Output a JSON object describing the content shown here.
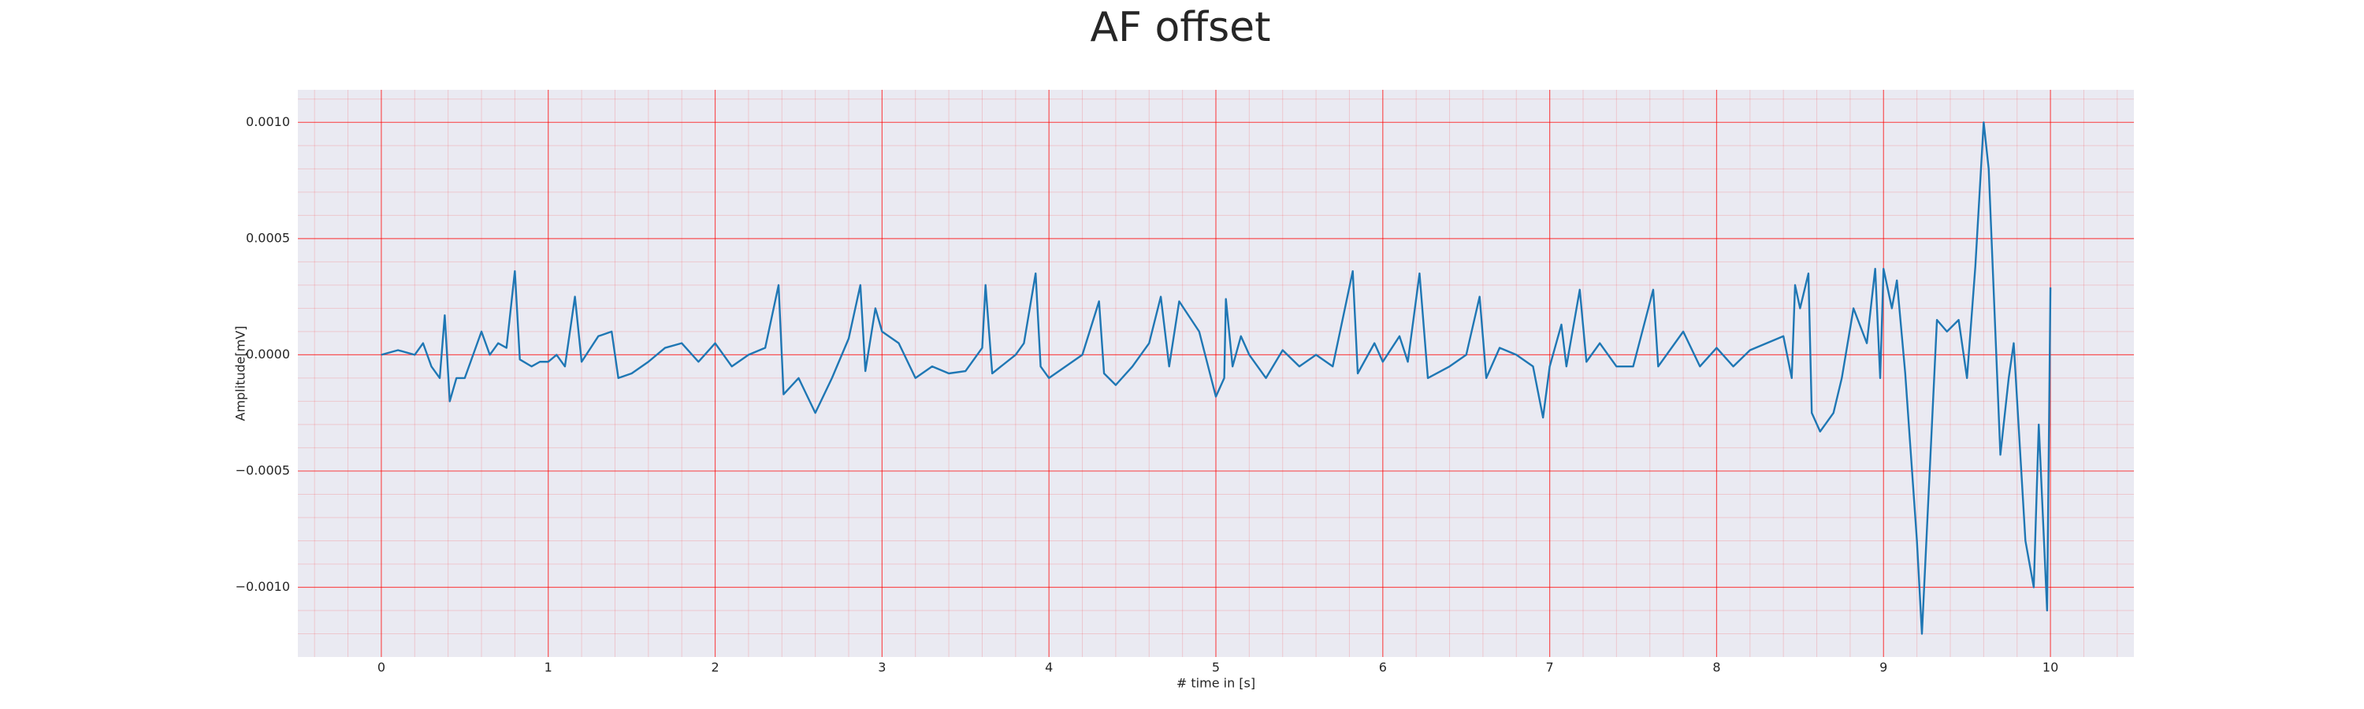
{
  "chart_data": {
    "type": "line",
    "title": "AF offset",
    "x_label": "# time in [s]",
    "y_label": "Amplitude[mV]",
    "xlim": [
      -0.5,
      10.5
    ],
    "ylim": [
      -0.0013,
      0.00114
    ],
    "xticks": [
      0,
      1,
      2,
      3,
      4,
      5,
      6,
      7,
      8,
      9,
      10
    ],
    "yticks": [
      {
        "value": -0.001,
        "label": "−0.0010"
      },
      {
        "value": -0.0005,
        "label": "−0.0005"
      },
      {
        "value": 0,
        "label": "0.0000"
      },
      {
        "value": 0.0005,
        "label": "0.0005"
      },
      {
        "value": 0.001,
        "label": "0.0010"
      }
    ],
    "grid": true,
    "minor_grid": true,
    "grid_color": "#ff0000",
    "background": "#eaeaf2",
    "x": [
      0,
      0.1,
      0.2,
      0.25,
      0.3,
      0.35,
      0.38,
      0.41,
      0.45,
      0.5,
      0.55,
      0.6,
      0.65,
      0.7,
      0.75,
      0.8,
      0.83,
      0.9,
      0.95,
      1.0,
      1.05,
      1.1,
      1.16,
      1.2,
      1.3,
      1.38,
      1.42,
      1.5,
      1.6,
      1.7,
      1.8,
      1.9,
      2.0,
      2.1,
      2.2,
      2.3,
      2.38,
      2.41,
      2.5,
      2.6,
      2.7,
      2.8,
      2.87,
      2.9,
      2.96,
      3.0,
      3.1,
      3.2,
      3.3,
      3.4,
      3.5,
      3.6,
      3.62,
      3.66,
      3.8,
      3.85,
      3.92,
      3.95,
      4.0,
      4.1,
      4.2,
      4.3,
      4.33,
      4.4,
      4.5,
      4.6,
      4.67,
      4.72,
      4.78,
      4.9,
      5.0,
      5.05,
      5.06,
      5.1,
      5.15,
      5.2,
      5.3,
      5.4,
      5.5,
      5.6,
      5.7,
      5.82,
      5.85,
      5.95,
      6.0,
      6.1,
      6.15,
      6.22,
      6.27,
      6.4,
      6.5,
      6.58,
      6.62,
      6.7,
      6.8,
      6.9,
      6.96,
      7.0,
      7.07,
      7.1,
      7.18,
      7.22,
      7.3,
      7.4,
      7.5,
      7.62,
      7.65,
      7.8,
      7.9,
      8.0,
      8.1,
      8.2,
      8.3,
      8.4,
      8.45,
      8.47,
      8.5,
      8.55,
      8.57,
      8.62,
      8.7,
      8.75,
      8.82,
      8.9,
      8.95,
      8.98,
      9.0,
      9.05,
      9.08,
      9.13,
      9.2,
      9.23,
      9.27,
      9.32,
      9.38,
      9.45,
      9.5,
      9.55,
      9.6,
      9.63,
      9.7,
      9.75,
      9.78,
      9.85,
      9.9,
      9.93,
      9.98,
      10.0
    ],
    "series": [
      {
        "name": "AF offset",
        "color": "#1f77b4",
        "values": [
          0,
          2e-05,
          0,
          5e-05,
          -5e-05,
          -0.0001,
          0.00017,
          -0.0002,
          -0.0001,
          -0.0001,
          0,
          0.0001,
          0,
          5e-05,
          3e-05,
          0.00036,
          -2e-05,
          -5e-05,
          -3e-05,
          -3e-05,
          0,
          -5e-05,
          0.00025,
          -3e-05,
          8e-05,
          0.0001,
          -0.0001,
          -8e-05,
          -3e-05,
          3e-05,
          5e-05,
          -3e-05,
          5e-05,
          -5e-05,
          0,
          3e-05,
          0.0003,
          -0.00017,
          -0.0001,
          -0.00025,
          -0.0001,
          7e-05,
          0.0003,
          -7e-05,
          0.0002,
          0.0001,
          5e-05,
          -0.0001,
          -5e-05,
          -8e-05,
          -7e-05,
          3e-05,
          0.0003,
          -8e-05,
          0,
          5e-05,
          0.00035,
          -5e-05,
          -0.0001,
          -5e-05,
          0,
          0.00023,
          -8e-05,
          -0.00013,
          -5e-05,
          5e-05,
          0.00025,
          -5e-05,
          0.00023,
          0.0001,
          -0.00018,
          -0.0001,
          0.00024,
          -5e-05,
          8e-05,
          0,
          -0.0001,
          2e-05,
          -5e-05,
          0,
          -5e-05,
          0.00036,
          -8e-05,
          5e-05,
          -3e-05,
          8e-05,
          -3e-05,
          0.00035,
          -0.0001,
          -5e-05,
          0,
          0.00025,
          -0.0001,
          3e-05,
          0,
          -5e-05,
          -0.00027,
          -5e-05,
          0.00013,
          -5e-05,
          0.00028,
          -3e-05,
          5e-05,
          -5e-05,
          -5e-05,
          0.00028,
          -5e-05,
          0.0001,
          -5e-05,
          3e-05,
          -5e-05,
          2e-05,
          5e-05,
          8e-05,
          -0.0001,
          0.0003,
          0.0002,
          0.00035,
          -0.00025,
          -0.00033,
          -0.00025,
          -0.0001,
          0.0002,
          5e-05,
          0.00037,
          -0.0001,
          0.00037,
          0.0002,
          0.00032,
          -8e-05,
          -0.0008,
          -0.0012,
          -0.0006,
          0.00015,
          0.0001,
          0.00015,
          -0.0001,
          0.00038,
          0.001,
          0.0008,
          -0.00043,
          -0.0001,
          5e-05,
          -0.0008,
          -0.001,
          -0.0003,
          -0.0011,
          0.00029
        ]
      }
    ]
  }
}
